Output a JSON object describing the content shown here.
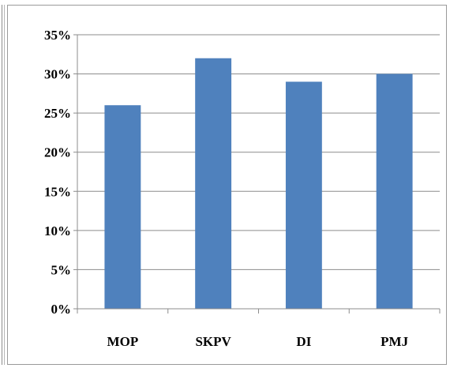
{
  "chart_data": {
    "type": "bar",
    "categories": [
      "MOP",
      "SKPV",
      "DI",
      "PMJ"
    ],
    "values": [
      26,
      32,
      29,
      30
    ],
    "title": "",
    "xlabel": "",
    "ylabel": "",
    "ylim": [
      0,
      35
    ],
    "yticks": [
      "0%",
      "5%",
      "10%",
      "15%",
      "20%",
      "25%",
      "30%",
      "35%"
    ],
    "grid": true,
    "legend": "none",
    "bar_color": "#4f81bd",
    "grid_color": "#8c8c8c"
  }
}
